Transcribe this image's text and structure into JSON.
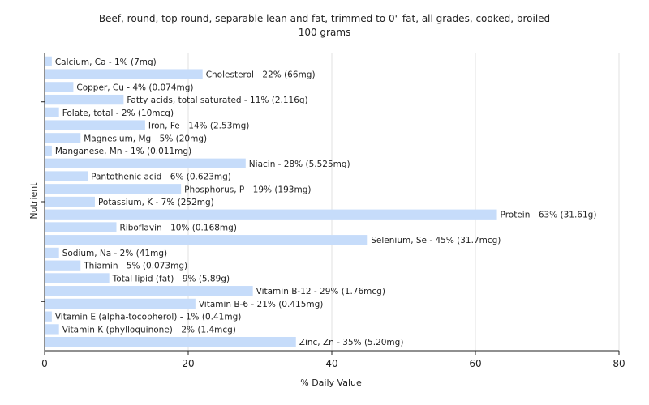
{
  "chart_data": {
    "type": "bar",
    "orientation": "horizontal",
    "title": "Beef, round, top round, separable lean and fat, trimmed to 0\" fat, all grades, cooked, broiled",
    "subtitle": "100 grams",
    "xlabel": "% Daily Value",
    "ylabel": "Nutrient",
    "xlim": [
      0,
      80
    ],
    "xticks": [
      0,
      20,
      40,
      60,
      80
    ],
    "grid": true,
    "categories": [
      "Calcium, Ca",
      "Cholesterol",
      "Copper, Cu",
      "Fatty acids, total saturated",
      "Folate, total",
      "Iron, Fe",
      "Magnesium, Mg",
      "Manganese, Mn",
      "Niacin",
      "Pantothenic acid",
      "Phosphorus, P",
      "Potassium, K",
      "Protein",
      "Riboflavin",
      "Selenium, Se",
      "Sodium, Na",
      "Thiamin",
      "Total lipid (fat)",
      "Vitamin B-12",
      "Vitamin B-6",
      "Vitamin E (alpha-tocopherol)",
      "Vitamin K (phylloquinone)",
      "Zinc, Zn"
    ],
    "values": [
      1,
      22,
      4,
      11,
      2,
      14,
      5,
      1,
      28,
      6,
      19,
      7,
      63,
      10,
      45,
      2,
      5,
      9,
      29,
      21,
      1,
      2,
      35
    ],
    "labels": [
      "Calcium, Ca - 1% (7mg)",
      "Cholesterol - 22% (66mg)",
      "Copper, Cu - 4% (0.074mg)",
      "Fatty acids, total saturated - 11% (2.116g)",
      "Folate, total - 2% (10mcg)",
      "Iron, Fe - 14% (2.53mg)",
      "Magnesium, Mg - 5% (20mg)",
      "Manganese, Mn - 1% (0.011mg)",
      "Niacin - 28% (5.525mg)",
      "Pantothenic acid - 6% (0.623mg)",
      "Phosphorus, P - 19% (193mg)",
      "Potassium, K - 7% (252mg)",
      "Protein - 63% (31.61g)",
      "Riboflavin - 10% (0.168mg)",
      "Selenium, Se - 45% (31.7mcg)",
      "Sodium, Na - 2% (41mg)",
      "Thiamin - 5% (0.073mg)",
      "Total lipid (fat) - 9% (5.89g)",
      "Vitamin B-12 - 29% (1.76mcg)",
      "Vitamin B-6 - 21% (0.415mg)",
      "Vitamin E (alpha-tocopherol) - 1% (0.41mg)",
      "Vitamin K (phylloquinone) - 2% (1.4mcg)",
      "Zinc, Zn - 35% (5.20mg)"
    ],
    "bar_color": "#c6dcfa"
  }
}
